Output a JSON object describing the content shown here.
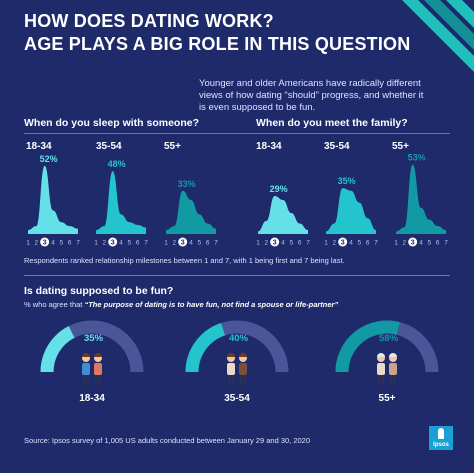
{
  "title_lines": [
    "HOW DOES DATING WORK?",
    "AGE PLAYS A BIG ROLE IN THIS QUESTION"
  ],
  "intro": "Younger and older Americans have radically different views of how dating “should” progress, and whether it is even supposed to be fun.",
  "note": "Respondents ranked relationship milestones between 1 and 7, with 1 being first and 7 being last.",
  "fun": {
    "title": "Is dating supposed to be fun?",
    "subtitle_prefix": "% who agree that ",
    "subtitle_quote": "“The purpose of dating is to have fun, not find a spouse or life-partner”"
  },
  "source": "Source: Ipsos survey of 1,005 US adults conducted between January 29 and 30, 2020",
  "logo_text": "Ipsos",
  "colors": {
    "background": "#1f2a6b",
    "teal_light": "#66e0e8",
    "teal_mid": "#23c4cc",
    "teal_dark": "#119aa3",
    "track": "#4a5697",
    "stripe": "#20c0bd"
  },
  "icons": [
    "couple-young-icon",
    "couple-middle-icon",
    "couple-senior-icon"
  ],
  "chart_data": [
    {
      "type": "area",
      "title": "When do you sleep with someone?",
      "x": [
        "1",
        "2",
        "3",
        "4",
        "5",
        "6",
        "7"
      ],
      "highlight_rank": "3",
      "series": [
        {
          "name": "18-34",
          "values": [
            3,
            6,
            52,
            18,
            9,
            6,
            4
          ],
          "label": "52%",
          "color": "#66e0e8"
        },
        {
          "name": "35-54",
          "values": [
            3,
            6,
            48,
            15,
            9,
            7,
            5
          ],
          "label": "48%",
          "color": "#23c4cc"
        },
        {
          "name": "55+",
          "values": [
            3,
            6,
            33,
            26,
            15,
            8,
            4
          ],
          "label": "33%",
          "color": "#119aa3"
        }
      ],
      "ylim": [
        0,
        55
      ]
    },
    {
      "type": "area",
      "title": "When do you meet the family?",
      "x": [
        "1",
        "2",
        "3",
        "4",
        "5",
        "6",
        "7"
      ],
      "highlight_rank": "3",
      "series": [
        {
          "name": "18-34",
          "values": [
            2,
            10,
            29,
            26,
            16,
            8,
            3
          ],
          "label": "29%",
          "color": "#66e0e8"
        },
        {
          "name": "35-54",
          "values": [
            2,
            8,
            35,
            33,
            24,
            12,
            3
          ],
          "label": "35%",
          "color": "#23c4cc"
        },
        {
          "name": "55+",
          "values": [
            2,
            5,
            53,
            20,
            11,
            6,
            3
          ],
          "label": "53%",
          "color": "#119aa3"
        }
      ],
      "ylim": [
        0,
        55
      ]
    },
    {
      "type": "pie",
      "title": "Is dating supposed to be fun?",
      "categories": [
        "18-34",
        "35-54",
        "55+"
      ],
      "values": [
        35,
        40,
        58
      ],
      "labels": [
        "35%",
        "40%",
        "58%"
      ],
      "colors": [
        "#66e0e8",
        "#23c4cc",
        "#119aa3"
      ]
    }
  ]
}
